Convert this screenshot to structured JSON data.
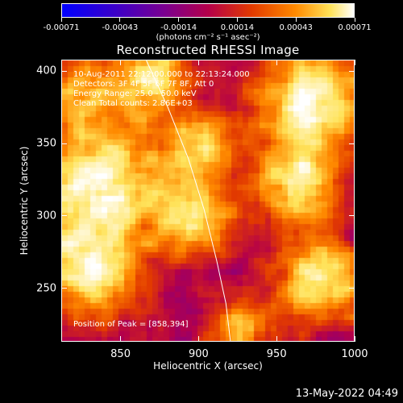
{
  "colorbar": {
    "ticks": [
      "-0.00071",
      "-0.00043",
      "-0.00014",
      "0.00014",
      "0.00043",
      "0.00071"
    ],
    "unit_label": "(photons cm⁻² s⁻¹ asec⁻²)",
    "min": -0.00071,
    "max": 0.00071
  },
  "title": "Reconstructed RHESSI Image",
  "annotations": {
    "time_range": "10-Aug-2011 22:12:00.000 to 22:13:24.000",
    "detectors": "Detectors: 3F 4F 5F 6F 7F 8F, Att 0",
    "energy": "Energy Range: 25.0 - 50.0 keV",
    "method": "Clean    Total counts: 2.86E+03",
    "peak": "Position of Peak = [858,394]"
  },
  "axes": {
    "xlabel": "Heliocentric X (arcsec)",
    "ylabel": "Heliocentric Y (arcsec)",
    "xticks": [
      "850",
      "900",
      "950",
      "1000"
    ],
    "yticks": [
      "250",
      "300",
      "350",
      "400"
    ],
    "xlim": [
      812,
      1000
    ],
    "ylim": [
      213,
      408
    ]
  },
  "timestamp": "13-May-2022 04:49",
  "chart_data": {
    "type": "heatmap",
    "title": "Reconstructed RHESSI Image",
    "xlabel": "Heliocentric X (arcsec)",
    "ylabel": "Heliocentric Y (arcsec)",
    "xlim": [
      812,
      1000
    ],
    "ylim": [
      213,
      408
    ],
    "color_range": [
      -0.00071,
      0.00071
    ],
    "peak": [
      858,
      394
    ],
    "limb_curve": [
      [
        866,
        408
      ],
      [
        880,
        375
      ],
      [
        893,
        340
      ],
      [
        903,
        305
      ],
      [
        911,
        270
      ],
      [
        917,
        240
      ],
      [
        920,
        213
      ]
    ]
  }
}
